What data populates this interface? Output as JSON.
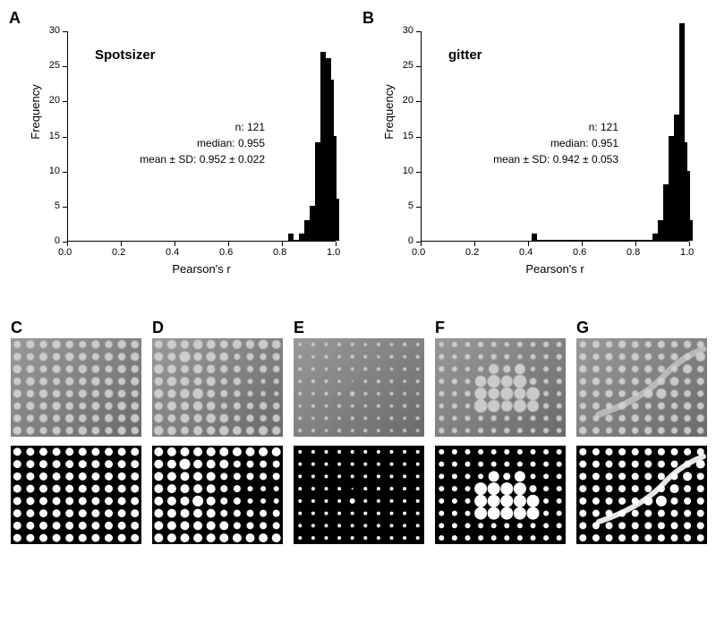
{
  "panels": {
    "A": {
      "label": "A",
      "title": "Spotsizer",
      "stats_n": "n:  121",
      "stats_median": "median:  0.955",
      "stats_mean": "mean ± SD:  0.952 ± 0.022"
    },
    "B": {
      "label": "B",
      "title": "gitter",
      "stats_n": "n:  121",
      "stats_median": "median:  0.951",
      "stats_mean": "mean ± SD:  0.942 ± 0.053"
    },
    "C": {
      "label": "C"
    },
    "D": {
      "label": "D"
    },
    "E": {
      "label": "E"
    },
    "F": {
      "label": "F"
    },
    "G": {
      "label": "G"
    }
  },
  "axis": {
    "x_label": "Pearson's r",
    "y_label": "Frequency",
    "x_ticks": [
      0.0,
      0.2,
      0.4,
      0.6,
      0.8,
      1.0
    ],
    "y_ticks": [
      0,
      5,
      10,
      15,
      20,
      25,
      30
    ],
    "x_min": 0.0,
    "x_max": 1.0,
    "y_min": 0,
    "y_max": 30
  },
  "charts": {
    "A": {
      "type": "histogram",
      "bin_width": 0.02,
      "bars": [
        {
          "x": 0.82,
          "y": 1
        },
        {
          "x": 0.86,
          "y": 1
        },
        {
          "x": 0.88,
          "y": 3
        },
        {
          "x": 0.9,
          "y": 5
        },
        {
          "x": 0.92,
          "y": 14
        },
        {
          "x": 0.94,
          "y": 27
        },
        {
          "x": 0.96,
          "y": 26
        },
        {
          "x": 0.97,
          "y": 23
        },
        {
          "x": 0.98,
          "y": 15
        },
        {
          "x": 0.99,
          "y": 6
        }
      ]
    },
    "B": {
      "type": "histogram",
      "bin_width": 0.02,
      "bars": [
        {
          "x": 0.41,
          "y": 1
        },
        {
          "x": 0.86,
          "y": 1
        },
        {
          "x": 0.88,
          "y": 3
        },
        {
          "x": 0.9,
          "y": 8
        },
        {
          "x": 0.92,
          "y": 15
        },
        {
          "x": 0.94,
          "y": 18
        },
        {
          "x": 0.95,
          "y": 17
        },
        {
          "x": 0.96,
          "y": 31
        },
        {
          "x": 0.97,
          "y": 14
        },
        {
          "x": 0.98,
          "y": 10
        },
        {
          "x": 0.99,
          "y": 3
        }
      ]
    }
  },
  "spot_config": {
    "cols": 10,
    "rows": 8,
    "bg_top": "#808080",
    "bg_bottom": "#000000",
    "spot_top": "#d8d8d8",
    "spot_bottom": "#ffffff",
    "border_color": "#aaaaaa"
  },
  "spot_panels": {
    "C": {
      "uniform_radius": 4.5,
      "top_variation": "slight",
      "special": []
    },
    "D": {
      "uniform_radius": 4.8,
      "sizes": [
        [
          5,
          5,
          5,
          5,
          5,
          5,
          5,
          5,
          5,
          5
        ],
        [
          5,
          5,
          6,
          5,
          5,
          5,
          4,
          4,
          4,
          4
        ],
        [
          5,
          5,
          5,
          5,
          5,
          4,
          4,
          4,
          4,
          4
        ],
        [
          5,
          5,
          5,
          5,
          5,
          4,
          4,
          3,
          3,
          3
        ],
        [
          5,
          5,
          5,
          6,
          5,
          4,
          4,
          3,
          3,
          3
        ],
        [
          5,
          5,
          5,
          5,
          5,
          4,
          4,
          4,
          4,
          4
        ],
        [
          5,
          5,
          5,
          5,
          5,
          5,
          4,
          4,
          4,
          4
        ],
        [
          5,
          5,
          5,
          5,
          5,
          5,
          5,
          5,
          5,
          5
        ]
      ]
    },
    "E": {
      "sizes": [
        [
          2,
          2,
          2,
          2,
          2,
          2,
          2,
          2,
          2,
          2
        ],
        [
          2,
          2,
          2,
          2,
          2,
          2,
          2,
          2,
          2,
          2
        ],
        [
          2,
          2,
          2,
          2,
          2,
          2,
          2,
          2,
          2,
          2
        ],
        [
          2,
          2,
          2,
          2,
          1,
          2,
          2,
          2,
          2,
          2
        ],
        [
          2,
          2,
          2,
          2,
          3,
          2,
          2,
          2,
          2,
          2
        ],
        [
          2,
          2,
          2,
          2,
          2,
          2,
          2,
          2,
          2,
          2
        ],
        [
          2,
          2,
          2,
          2,
          2,
          2,
          2,
          2,
          2,
          2
        ],
        [
          2,
          2,
          2,
          2,
          2,
          2,
          2,
          2,
          2,
          2
        ]
      ]
    },
    "F": {
      "sizes": [
        [
          3,
          3,
          3,
          3,
          3,
          3,
          3,
          3,
          3,
          3
        ],
        [
          3,
          3,
          3,
          3,
          3,
          3,
          3,
          3,
          3,
          3
        ],
        [
          3,
          3,
          3,
          3,
          6,
          4,
          6,
          3,
          3,
          3
        ],
        [
          3,
          3,
          3,
          7,
          7,
          7,
          7,
          4,
          3,
          3
        ],
        [
          3,
          3,
          3,
          7,
          7,
          7,
          7,
          7,
          3,
          3
        ],
        [
          3,
          3,
          3,
          7,
          7,
          7,
          7,
          7,
          3,
          3
        ],
        [
          3,
          3,
          3,
          3,
          3,
          3,
          3,
          3,
          3,
          3
        ],
        [
          3,
          3,
          3,
          3,
          3,
          3,
          3,
          3,
          3,
          3
        ]
      ]
    },
    "G": {
      "sizes": [
        [
          4,
          4,
          4,
          4,
          4,
          4,
          4,
          4,
          4,
          4
        ],
        [
          4,
          4,
          4,
          4,
          4,
          4,
          4,
          4,
          4,
          5
        ],
        [
          4,
          4,
          4,
          4,
          4,
          4,
          4,
          4,
          5,
          4
        ],
        [
          4,
          4,
          4,
          4,
          4,
          4,
          4,
          5,
          4,
          4
        ],
        [
          4,
          4,
          4,
          4,
          4,
          5,
          6,
          4,
          4,
          4
        ],
        [
          4,
          4,
          4,
          4,
          4,
          4,
          4,
          4,
          4,
          4
        ],
        [
          4,
          4,
          4,
          4,
          4,
          4,
          4,
          4,
          4,
          4
        ],
        [
          4,
          4,
          4,
          4,
          4,
          4,
          4,
          4,
          4,
          4
        ]
      ],
      "streak": true
    }
  },
  "colors": {
    "text": "#000000",
    "bar": "#000000",
    "axis": "#000000"
  },
  "typography": {
    "panel_label_size": 18,
    "title_size": 15,
    "stats_size": 12,
    "axis_label_size": 13,
    "tick_size": 11
  }
}
